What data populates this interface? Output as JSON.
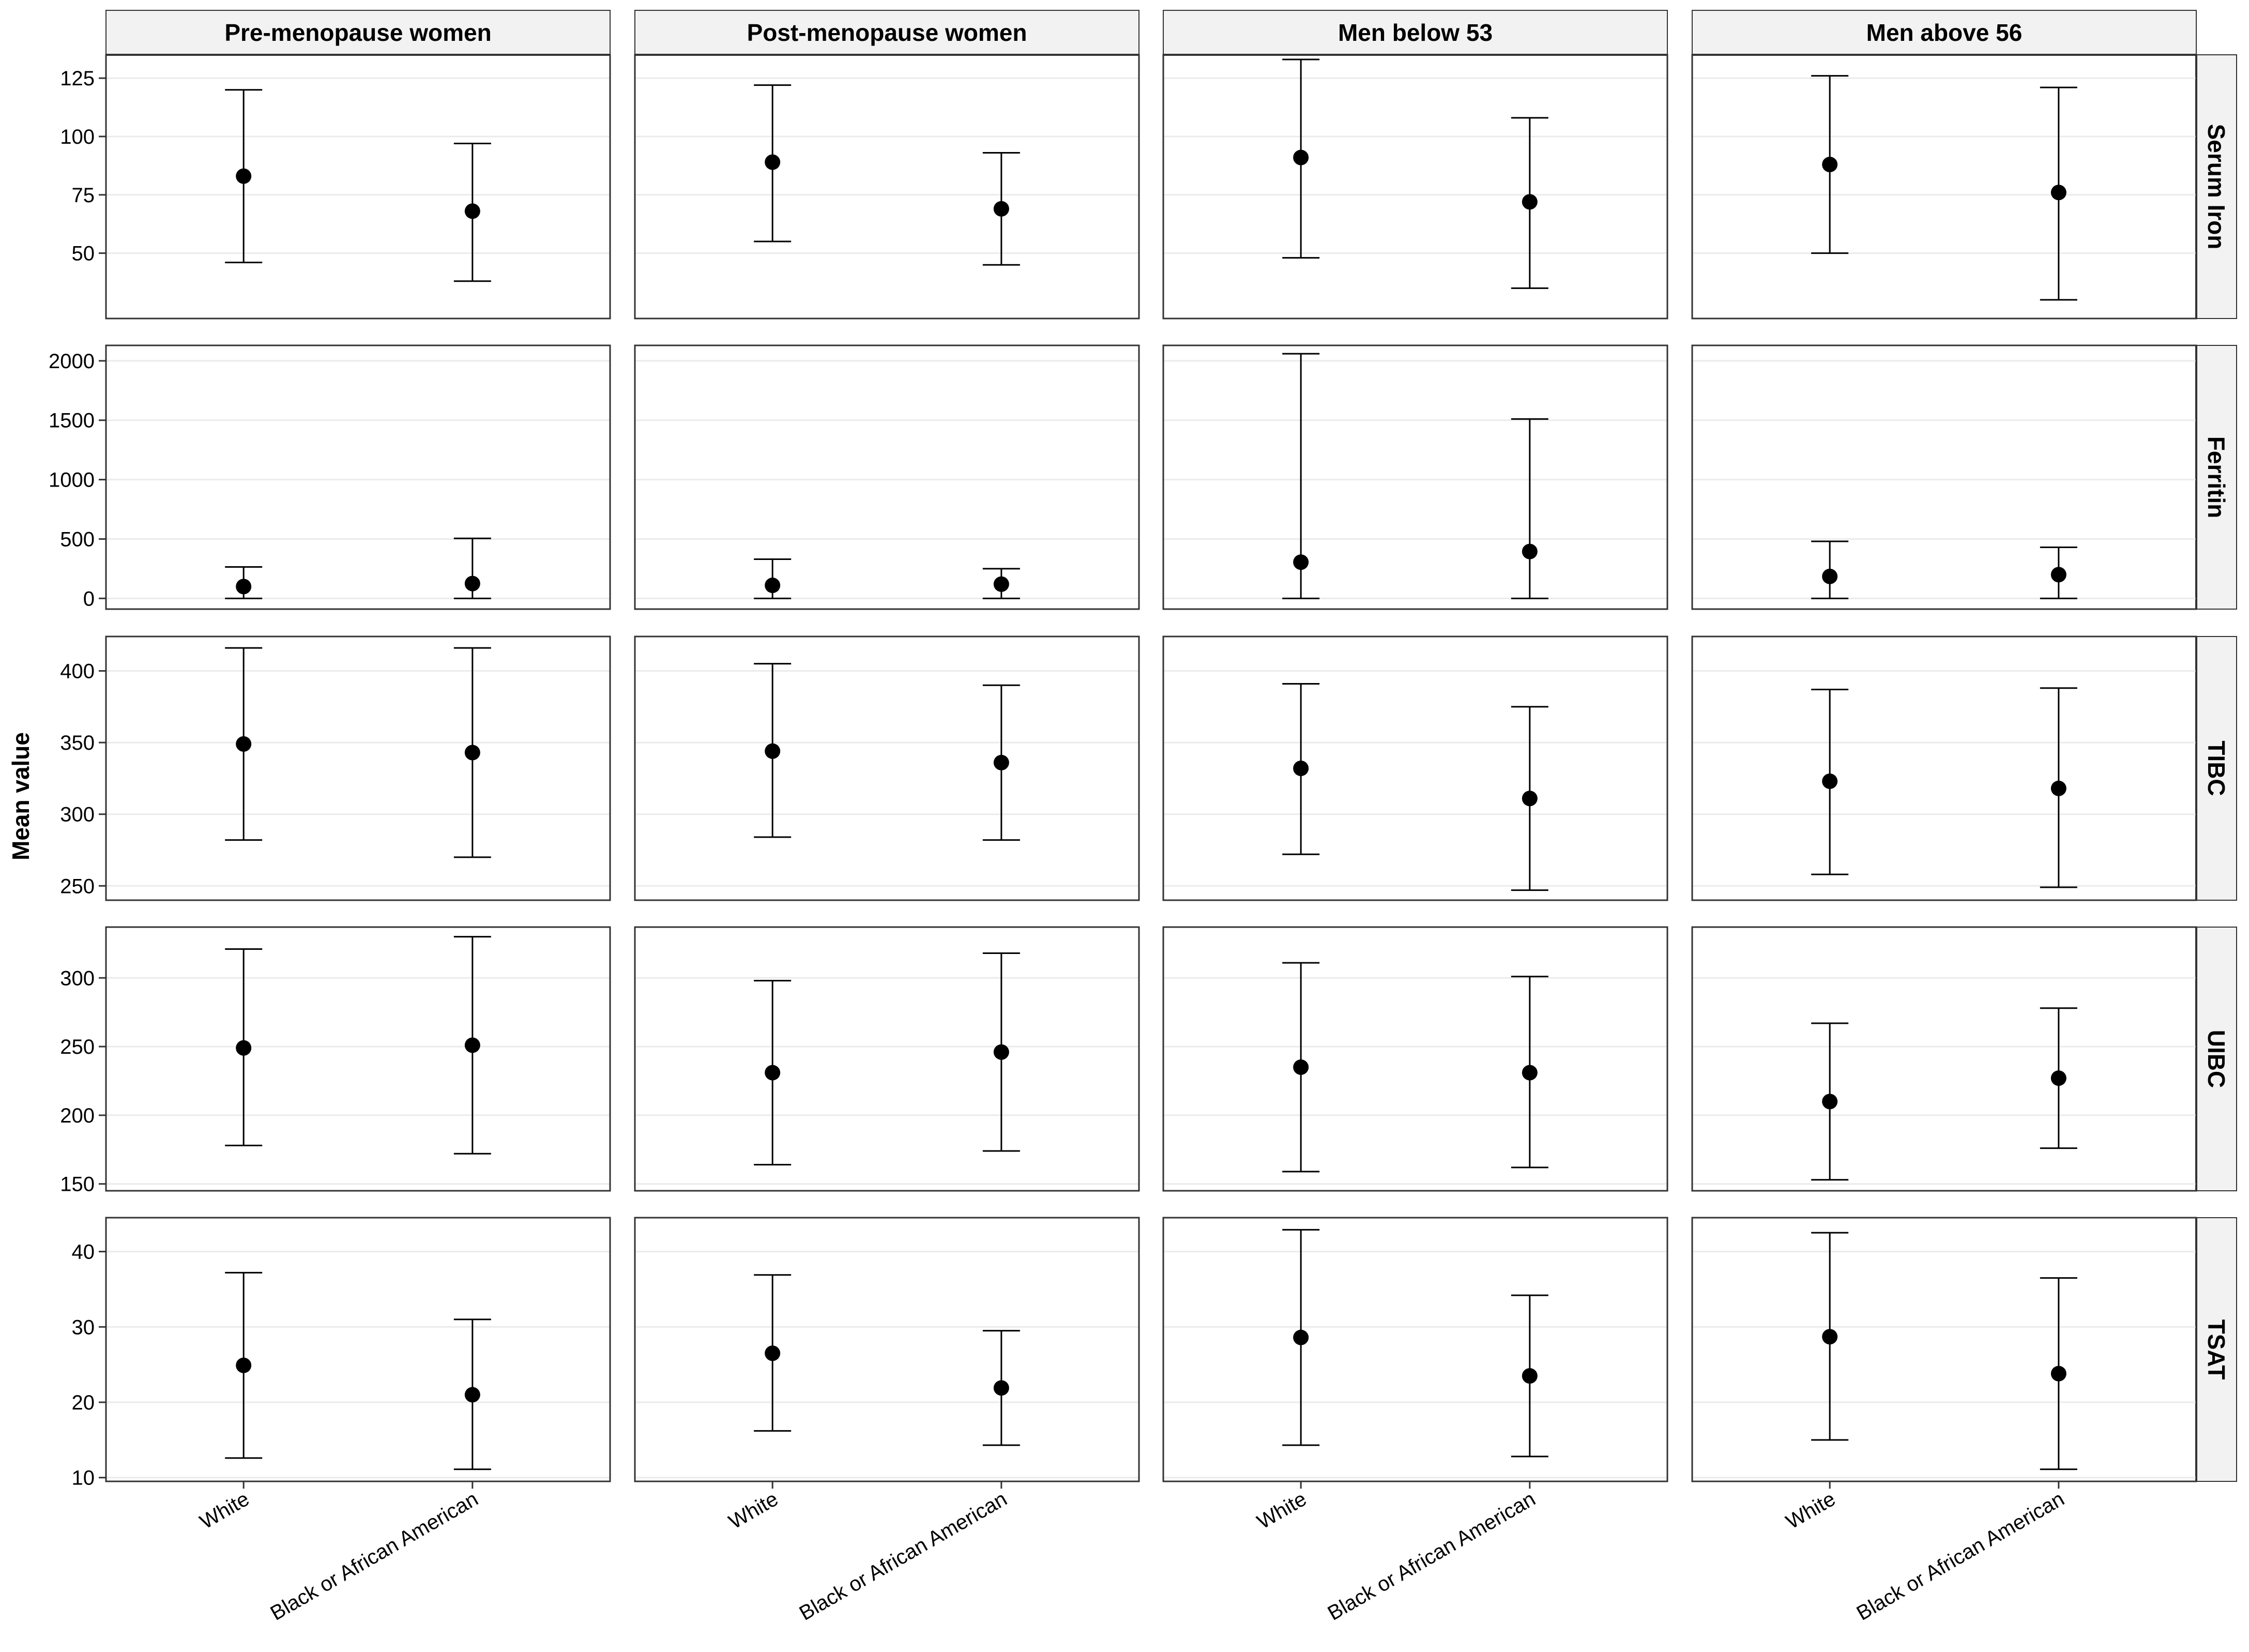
{
  "colors": {
    "strip_fill": "#F2F2F2",
    "panel_border": "#333333",
    "grid": "#EBEBEB",
    "mark": "#000000",
    "background": "#FFFFFF"
  },
  "chart_data": {
    "type": "scatter",
    "mark_style": "point with error bars",
    "ylabel": "Mean value",
    "xlabel": "",
    "x_categories": [
      "White",
      "Black or African American"
    ],
    "columns": [
      "Pre-menopause women",
      "Post-menopause women",
      "Men below 53",
      "Men above 56"
    ],
    "rows": [
      {
        "name": "Serum Iron",
        "ylim": [
          22,
          135
        ],
        "yticks": [
          50,
          75,
          100,
          125
        ],
        "cells": [
          [
            {
              "mean": 83,
              "lower": 46,
              "upper": 120
            },
            {
              "mean": 68,
              "lower": 38,
              "upper": 97
            }
          ],
          [
            {
              "mean": 89,
              "lower": 55,
              "upper": 122
            },
            {
              "mean": 69,
              "lower": 45,
              "upper": 93
            }
          ],
          [
            {
              "mean": 91,
              "lower": 48,
              "upper": 133
            },
            {
              "mean": 72,
              "lower": 35,
              "upper": 108
            }
          ],
          [
            {
              "mean": 88,
              "lower": 50,
              "upper": 126
            },
            {
              "mean": 76,
              "lower": 30,
              "upper": 121
            }
          ]
        ]
      },
      {
        "name": "Ferritin",
        "ylim": [
          -90,
          2130
        ],
        "yticks": [
          0,
          500,
          1000,
          1500,
          2000
        ],
        "cells": [
          [
            {
              "mean": 100,
              "lower": 0,
              "upper": 265
            },
            {
              "mean": 125,
              "lower": 0,
              "upper": 505
            }
          ],
          [
            {
              "mean": 110,
              "lower": 0,
              "upper": 330
            },
            {
              "mean": 120,
              "lower": 0,
              "upper": 250
            }
          ],
          [
            {
              "mean": 305,
              "lower": 0,
              "upper": 2060
            },
            {
              "mean": 395,
              "lower": 0,
              "upper": 1510
            }
          ],
          [
            {
              "mean": 185,
              "lower": 0,
              "upper": 480
            },
            {
              "mean": 200,
              "lower": 0,
              "upper": 430
            }
          ]
        ]
      },
      {
        "name": "TIBC",
        "ylim": [
          240,
          424
        ],
        "yticks": [
          250,
          300,
          350,
          400
        ],
        "cells": [
          [
            {
              "mean": 349,
              "lower": 282,
              "upper": 416
            },
            {
              "mean": 343,
              "lower": 270,
              "upper": 416
            }
          ],
          [
            {
              "mean": 344,
              "lower": 284,
              "upper": 405
            },
            {
              "mean": 336,
              "lower": 282,
              "upper": 390
            }
          ],
          [
            {
              "mean": 332,
              "lower": 272,
              "upper": 391
            },
            {
              "mean": 311,
              "lower": 247,
              "upper": 375
            }
          ],
          [
            {
              "mean": 323,
              "lower": 258,
              "upper": 387
            },
            {
              "mean": 318,
              "lower": 249,
              "upper": 388
            }
          ]
        ]
      },
      {
        "name": "UIBC",
        "ylim": [
          145,
          337
        ],
        "yticks": [
          150,
          200,
          250,
          300
        ],
        "cells": [
          [
            {
              "mean": 249,
              "lower": 178,
              "upper": 321
            },
            {
              "mean": 251,
              "lower": 172,
              "upper": 330
            }
          ],
          [
            {
              "mean": 231,
              "lower": 164,
              "upper": 298
            },
            {
              "mean": 246,
              "lower": 174,
              "upper": 318
            }
          ],
          [
            {
              "mean": 235,
              "lower": 159,
              "upper": 311
            },
            {
              "mean": 231,
              "lower": 162,
              "upper": 301
            }
          ],
          [
            {
              "mean": 210,
              "lower": 153,
              "upper": 267
            },
            {
              "mean": 227,
              "lower": 176,
              "upper": 278
            }
          ]
        ]
      },
      {
        "name": "TSAT",
        "ylim": [
          9.5,
          44.5
        ],
        "yticks": [
          10,
          20,
          30,
          40
        ],
        "cells": [
          [
            {
              "mean": 24.9,
              "lower": 12.6,
              "upper": 37.2
            },
            {
              "mean": 21.0,
              "lower": 11.1,
              "upper": 31.0
            }
          ],
          [
            {
              "mean": 26.5,
              "lower": 16.2,
              "upper": 36.9
            },
            {
              "mean": 21.9,
              "lower": 14.3,
              "upper": 29.5
            }
          ],
          [
            {
              "mean": 28.6,
              "lower": 14.3,
              "upper": 42.9
            },
            {
              "mean": 23.5,
              "lower": 12.8,
              "upper": 34.2
            }
          ],
          [
            {
              "mean": 28.7,
              "lower": 15.0,
              "upper": 42.5
            },
            {
              "mean": 23.8,
              "lower": 11.1,
              "upper": 36.5
            }
          ]
        ]
      }
    ],
    "grid": true,
    "legend": "none"
  }
}
